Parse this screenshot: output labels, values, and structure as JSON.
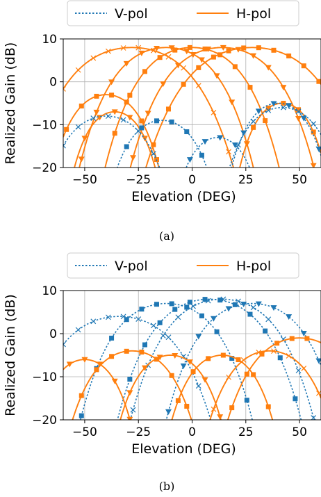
{
  "colors": {
    "v_pol": "#1f77b4",
    "h_pol": "#ff7f0e",
    "grid": "#b0b0b0"
  },
  "chart_data": [
    {
      "type": "line",
      "caption": "(a)",
      "xlabel": "Elevation (DEG)",
      "ylabel": "Realized Gain (dB)",
      "xlim": [
        -60,
        60
      ],
      "ylim": [
        -20,
        10
      ],
      "xticks": [
        -50,
        -25,
        0,
        25,
        50
      ],
      "yticks": [
        -20,
        -10,
        0,
        10
      ],
      "grid": true,
      "legend": {
        "placement": "top",
        "entries": [
          {
            "label": "V-pol",
            "style": "dotted",
            "color": "#1f77b4"
          },
          {
            "label": "H-pol",
            "style": "solid",
            "color": "#ff7f0e"
          }
        ]
      },
      "series": [
        {
          "pol": "H",
          "marker": "x",
          "peak_x": -28,
          "peak_y": 8,
          "width": 42,
          "floor": -20
        },
        {
          "pol": "H",
          "marker": "triangle",
          "peak_x": -12,
          "peak_y": 8,
          "width": 36,
          "floor": -20
        },
        {
          "pol": "H",
          "marker": "square",
          "peak_x": 0,
          "peak_y": 8,
          "width": 36,
          "floor": -20
        },
        {
          "pol": "H",
          "marker": "triangle",
          "peak_x": 14,
          "peak_y": 8,
          "width": 38,
          "floor": -20
        },
        {
          "pol": "H",
          "marker": "square",
          "peak_x": 28,
          "peak_y": 8,
          "width": 44,
          "floor": -20
        },
        {
          "pol": "H",
          "marker": "square",
          "peak_x": -40,
          "peak_y": -3,
          "width": 26,
          "floor": -20
        },
        {
          "pol": "H",
          "marker": "triangle",
          "peak_x": -36,
          "peak_y": -7,
          "width": 22,
          "floor": -20
        },
        {
          "pol": "H",
          "marker": "square",
          "peak_x": 42,
          "peak_y": -5,
          "width": 22,
          "floor": -20
        },
        {
          "pol": "V",
          "marker": "x",
          "peak_x": -40,
          "peak_y": -8,
          "width": 30,
          "floor": -20
        },
        {
          "pol": "V",
          "marker": "square",
          "peak_x": -14,
          "peak_y": -9,
          "width": 26,
          "floor": -20
        },
        {
          "pol": "V",
          "marker": "triangle",
          "peak_x": 12,
          "peak_y": -13,
          "width": 22,
          "floor": -20
        },
        {
          "pol": "V",
          "marker": "x",
          "peak_x": 42,
          "peak_y": -6,
          "width": 28,
          "floor": -20
        },
        {
          "pol": "V",
          "marker": "triangle",
          "peak_x": 40,
          "peak_y": -5,
          "width": 24,
          "floor": -20
        }
      ]
    },
    {
      "type": "line",
      "caption": "(b)",
      "xlabel": "Elevation (DEG)",
      "ylabel": "Realized Gain (dB)",
      "xlim": [
        -60,
        60
      ],
      "ylim": [
        -20,
        10
      ],
      "xticks": [
        -50,
        -25,
        0,
        25,
        50
      ],
      "yticks": [
        -20,
        -10,
        0,
        10
      ],
      "grid": true,
      "legend": {
        "placement": "top",
        "entries": [
          {
            "label": "V-pol",
            "style": "dotted",
            "color": "#1f77b4"
          },
          {
            "label": "H-pol",
            "style": "solid",
            "color": "#ff7f0e"
          }
        ]
      },
      "series": [
        {
          "pol": "V",
          "marker": "x",
          "peak_x": -34,
          "peak_y": 4,
          "width": 40,
          "floor": -20
        },
        {
          "pol": "V",
          "marker": "square",
          "peak_x": -12,
          "peak_y": 7,
          "width": 36,
          "floor": -20
        },
        {
          "pol": "V",
          "marker": "square",
          "peak_x": 8,
          "peak_y": 8,
          "width": 38,
          "floor": -20
        },
        {
          "pol": "V",
          "marker": "x",
          "peak_x": 14,
          "peak_y": 8,
          "width": 38,
          "floor": -20
        },
        {
          "pol": "V",
          "marker": "triangle",
          "peak_x": 28,
          "peak_y": 7,
          "width": 36,
          "floor": -20
        },
        {
          "pol": "H",
          "marker": "square",
          "peak_x": -28,
          "peak_y": -4,
          "width": 30,
          "floor": -20
        },
        {
          "pol": "H",
          "marker": "triangle",
          "peak_x": -10,
          "peak_y": -5,
          "width": 26,
          "floor": -20
        },
        {
          "pol": "H",
          "marker": "square",
          "peak_x": 14,
          "peak_y": -5,
          "width": 26,
          "floor": -20
        },
        {
          "pol": "H",
          "marker": "x",
          "peak_x": 36,
          "peak_y": -4,
          "width": 30,
          "floor": -20
        },
        {
          "pol": "H",
          "marker": "square",
          "peak_x": 50,
          "peak_y": -1,
          "width": 34,
          "floor": -20
        },
        {
          "pol": "H",
          "marker": "triangle",
          "peak_x": -50,
          "peak_y": -6,
          "width": 24,
          "floor": -20
        }
      ]
    }
  ]
}
